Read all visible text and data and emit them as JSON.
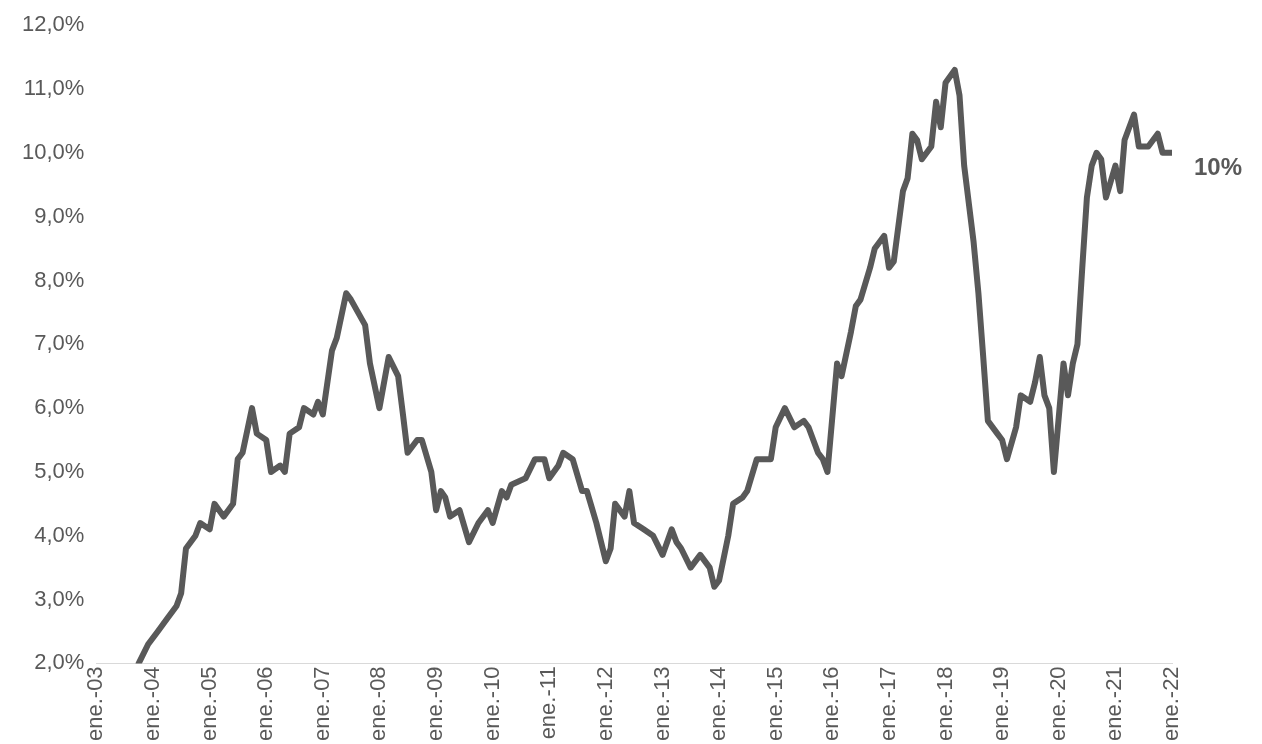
{
  "chart_data": {
    "type": "line",
    "x": [
      "2003-10",
      "2003-12",
      "2004-02",
      "2004-04",
      "2004-06",
      "2004-07",
      "2004-08",
      "2004-10",
      "2004-11",
      "2005-01",
      "2005-02",
      "2005-04",
      "2005-06",
      "2005-07",
      "2005-08",
      "2005-10",
      "2005-11",
      "2006-01",
      "2006-02",
      "2006-04",
      "2006-05",
      "2006-06",
      "2006-08",
      "2006-09",
      "2006-11",
      "2006-12",
      "2007-01",
      "2007-03",
      "2007-04",
      "2007-06",
      "2007-07",
      "2007-10",
      "2007-11",
      "2008-01",
      "2008-03",
      "2008-05",
      "2008-06",
      "2008-07",
      "2008-09",
      "2008-10",
      "2008-12",
      "2009-01",
      "2009-02",
      "2009-03",
      "2009-04",
      "2009-06",
      "2009-08",
      "2009-10",
      "2009-12",
      "2010-01",
      "2010-03",
      "2010-04",
      "2010-05",
      "2010-08",
      "2010-10",
      "2010-12",
      "2011-01",
      "2011-03",
      "2011-04",
      "2011-06",
      "2011-08",
      "2011-09",
      "2011-11",
      "2012-01",
      "2012-02",
      "2012-03",
      "2012-05",
      "2012-06",
      "2012-07",
      "2012-09",
      "2012-11",
      "2013-01",
      "2013-03",
      "2013-04",
      "2013-05",
      "2013-07",
      "2013-09",
      "2013-11",
      "2013-12",
      "2014-01",
      "2014-03",
      "2014-04",
      "2014-06",
      "2014-07",
      "2014-09",
      "2014-10",
      "2014-12",
      "2015-01",
      "2015-03",
      "2015-05",
      "2015-07",
      "2015-08",
      "2015-10",
      "2015-11",
      "2015-12",
      "2016-02",
      "2016-03",
      "2016-05",
      "2016-06",
      "2016-07",
      "2016-09",
      "2016-10",
      "2016-12",
      "2017-01",
      "2017-02",
      "2017-04",
      "2017-05",
      "2017-06",
      "2017-07",
      "2017-08",
      "2017-10",
      "2017-11",
      "2017-12",
      "2018-01",
      "2018-03",
      "2018-04",
      "2018-05",
      "2018-07",
      "2018-08",
      "2018-09",
      "2018-10",
      "2018-12",
      "2019-01",
      "2019-02",
      "2019-04",
      "2019-05",
      "2019-07",
      "2019-08",
      "2019-09",
      "2019-10",
      "2019-11",
      "2019-12",
      "2020-02",
      "2020-03",
      "2020-04",
      "2020-05",
      "2020-06",
      "2020-07",
      "2020-08",
      "2020-09",
      "2020-10",
      "2020-11",
      "2021-01",
      "2021-02",
      "2021-03",
      "2021-05",
      "2021-06",
      "2021-08",
      "2021-10",
      "2021-11",
      "2022-01"
    ],
    "series": [
      {
        "color": "#595959",
        "values": [
          2.0,
          2.3,
          2.5,
          2.7,
          2.9,
          3.1,
          3.8,
          4.0,
          4.2,
          4.1,
          4.5,
          4.3,
          4.5,
          5.2,
          5.3,
          6.0,
          5.6,
          5.5,
          5.0,
          5.1,
          5.0,
          5.6,
          5.7,
          6.0,
          5.9,
          6.1,
          5.9,
          6.9,
          7.1,
          7.8,
          7.7,
          7.3,
          6.7,
          6.0,
          6.8,
          6.5,
          5.9,
          5.3,
          5.5,
          5.5,
          5.0,
          4.4,
          4.7,
          4.6,
          4.3,
          4.4,
          3.9,
          4.2,
          4.4,
          4.2,
          4.7,
          4.6,
          4.8,
          4.9,
          5.2,
          5.2,
          4.9,
          5.1,
          5.3,
          5.2,
          4.7,
          4.7,
          4.2,
          3.6,
          3.8,
          4.5,
          4.3,
          4.7,
          4.2,
          4.1,
          4.0,
          3.7,
          4.1,
          3.9,
          3.8,
          3.5,
          3.7,
          3.5,
          3.2,
          3.3,
          4.0,
          4.5,
          4.6,
          4.7,
          5.2,
          5.2,
          5.2,
          5.7,
          6.0,
          5.7,
          5.8,
          5.7,
          5.3,
          5.2,
          5.0,
          6.7,
          6.5,
          7.2,
          7.6,
          7.7,
          8.2,
          8.5,
          8.7,
          8.2,
          8.3,
          9.4,
          9.6,
          10.3,
          10.2,
          9.9,
          10.1,
          10.8,
          10.4,
          11.1,
          11.3,
          10.9,
          9.8,
          8.6,
          7.8,
          6.8,
          5.8,
          5.6,
          5.5,
          5.2,
          5.7,
          6.2,
          6.1,
          6.4,
          6.8,
          6.2,
          6.0,
          5.0,
          6.7,
          6.2,
          6.7,
          7.0,
          8.2,
          9.3,
          9.8,
          10.0,
          9.9,
          9.3,
          9.8,
          9.4,
          10.2,
          10.6,
          10.1,
          10.1,
          10.3,
          10.0,
          10.0
        ]
      }
    ],
    "xlim": [
      "2003-01",
      "2022-01"
    ],
    "xticks": [
      {
        "value": "2003-01",
        "label": "ene.-03"
      },
      {
        "value": "2004-01",
        "label": "ene.-04"
      },
      {
        "value": "2005-01",
        "label": "ene.-05"
      },
      {
        "value": "2006-01",
        "label": "ene.-06"
      },
      {
        "value": "2007-01",
        "label": "ene.-07"
      },
      {
        "value": "2008-01",
        "label": "ene.-08"
      },
      {
        "value": "2009-01",
        "label": "ene.-09"
      },
      {
        "value": "2010-01",
        "label": "ene.-10"
      },
      {
        "value": "2011-01",
        "label": "ene.-11"
      },
      {
        "value": "2012-01",
        "label": "ene.-12"
      },
      {
        "value": "2013-01",
        "label": "ene.-13"
      },
      {
        "value": "2014-01",
        "label": "ene.-14"
      },
      {
        "value": "2015-01",
        "label": "ene.-15"
      },
      {
        "value": "2016-01",
        "label": "ene.-16"
      },
      {
        "value": "2017-01",
        "label": "ene.-17"
      },
      {
        "value": "2018-01",
        "label": "ene.-18"
      },
      {
        "value": "2019-01",
        "label": "ene.-19"
      },
      {
        "value": "2020-01",
        "label": "ene.-20"
      },
      {
        "value": "2021-01",
        "label": "ene.-21"
      },
      {
        "value": "2022-01",
        "label": "ene.-22"
      }
    ],
    "ylim": [
      2,
      12
    ],
    "yticks": [
      {
        "value": 2,
        "label": "2,0%"
      },
      {
        "value": 3,
        "label": "3,0%"
      },
      {
        "value": 4,
        "label": "4,0%"
      },
      {
        "value": 5,
        "label": "5,0%"
      },
      {
        "value": 6,
        "label": "6,0%"
      },
      {
        "value": 7,
        "label": "7,0%"
      },
      {
        "value": 8,
        "label": "8,0%"
      },
      {
        "value": 9,
        "label": "9,0%"
      },
      {
        "value": 10,
        "label": "10,0%"
      },
      {
        "value": 11,
        "label": "11,0%"
      },
      {
        "value": 12,
        "label": "12,0%"
      }
    ],
    "annotations": [
      {
        "text": "10%",
        "x": "2022-01",
        "y": 10.0
      }
    ],
    "grid": false,
    "legend": false,
    "marker": "none",
    "line_style": "solid"
  }
}
